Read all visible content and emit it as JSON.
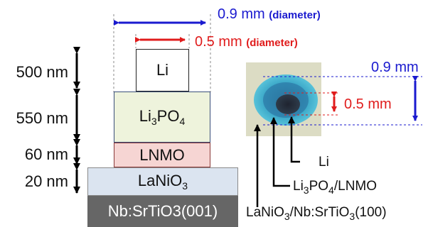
{
  "colors": {
    "blue": "#1a1acf",
    "red": "#e01c1c",
    "li_fill": "#ffffff",
    "li3po4_fill": "#eef3dc",
    "lnmo_fill": "#f6d5d3",
    "lanio3_fill": "#dbe4f0",
    "substrate_fill": "#666666"
  },
  "top_dimensions": {
    "outer_value": "0.9 mm",
    "outer_note": "(diameter)",
    "inner_value": "0.5 mm",
    "inner_note": "(diameter)"
  },
  "thickness_labels": [
    "500 nm",
    "550 nm",
    "60 nm",
    "20 nm"
  ],
  "layers": {
    "li": "Li",
    "li3po4": {
      "base1": "Li",
      "sub1": "3",
      "base2": "PO",
      "sub2": "4"
    },
    "lnmo": "LNMO",
    "lanio3": {
      "base": "LaNiO",
      "sub": "3"
    },
    "substrate": "Nb:SrTiO3(001)"
  },
  "photo_dimensions": {
    "outer": "0.9 mm",
    "inner": "0.5 mm"
  },
  "photo_labels": {
    "li": "Li",
    "li3po4_lnmo": {
      "a": "Li",
      "a_sub": "3",
      "b": "PO",
      "b_sub": "4",
      "c": "/LNMO"
    },
    "lanio3_nbsto": {
      "a": "LaNiO",
      "a_sub": "3",
      "b": "/Nb:SrTiO",
      "b_sub": "3",
      "c": "(100)"
    }
  },
  "icons": [
    "double-headed-arrow",
    "circular-electrode-photo"
  ]
}
